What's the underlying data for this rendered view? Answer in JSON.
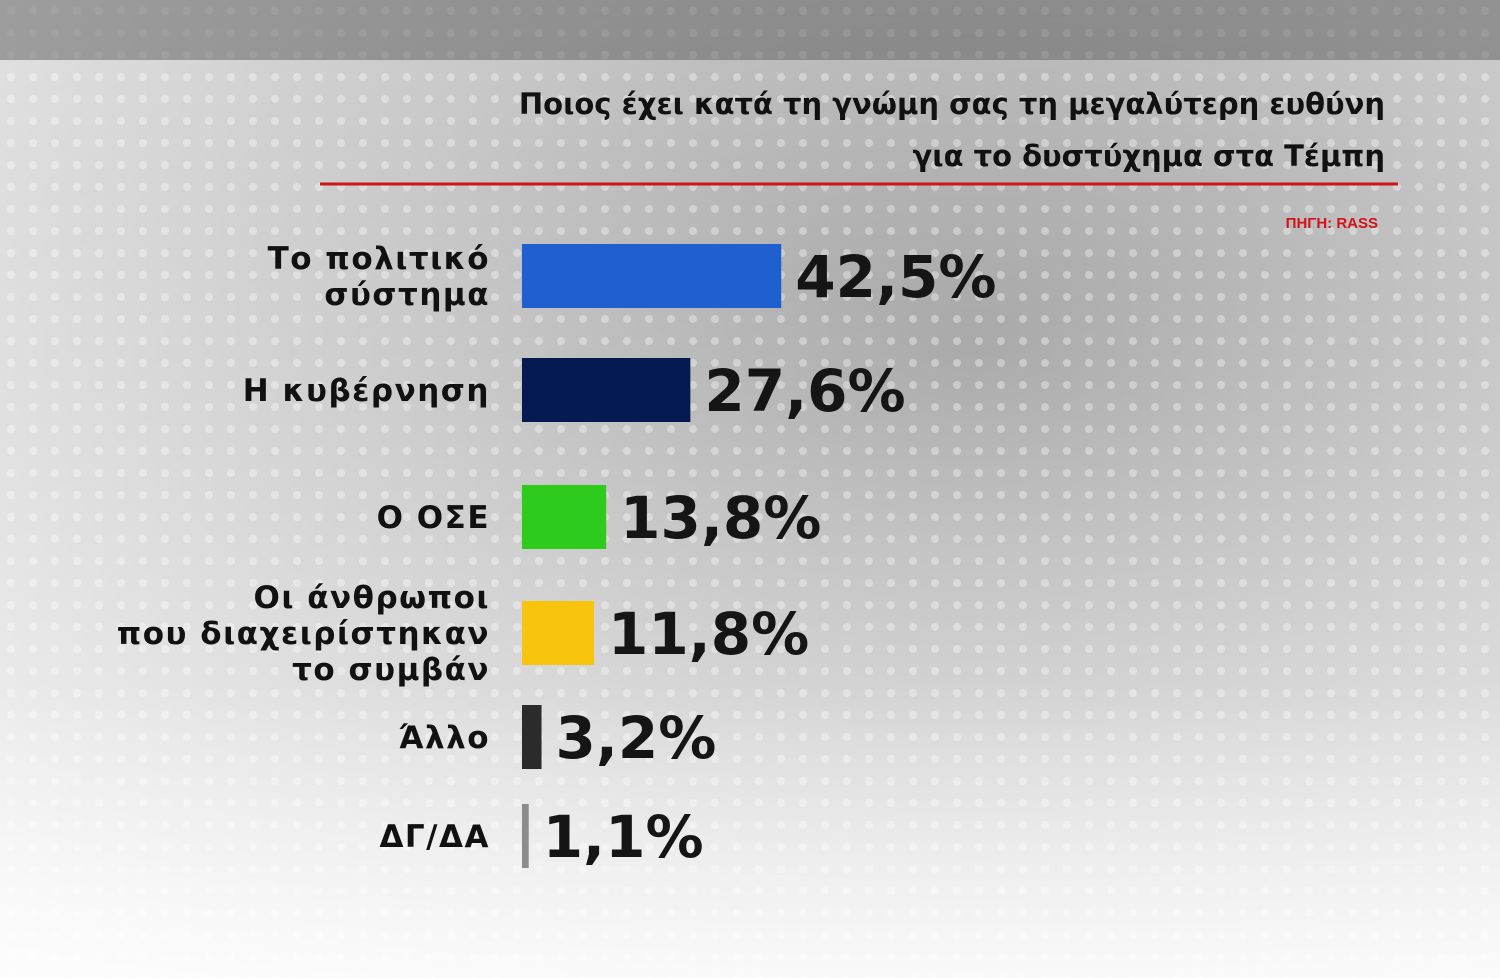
{
  "chart_data": {
    "type": "bar",
    "orientation": "horizontal",
    "title": [
      "Ποιος έχει κατά τη γνώμη σας τη μεγαλύτερη ευθύνη",
      "για το δυστύχημα στα Τέμπη"
    ],
    "source": "ΠΗΓΗ: RASS",
    "categories": [
      [
        "Το πολιτικό",
        "σύστημα"
      ],
      [
        "Η κυβέρνηση"
      ],
      [
        "Ο ΟΣΕ"
      ],
      [
        "Οι άνθρωποι",
        "που διαχειρίστηκαν",
        "το συμβάν"
      ],
      [
        "Άλλο"
      ],
      [
        "ΔΓ/ΔΑ"
      ]
    ],
    "values": [
      42.5,
      27.6,
      13.8,
      11.8,
      3.2,
      1.1
    ],
    "value_labels": [
      "42,5%",
      "27,6%",
      "13,8%",
      "11,8%",
      "3,2%",
      "1,1%"
    ],
    "colors": [
      "#1f5fcf",
      "#061a52",
      "#2ecb1c",
      "#f8c40c",
      "#2b2b2b",
      "#8c8c8c"
    ]
  }
}
